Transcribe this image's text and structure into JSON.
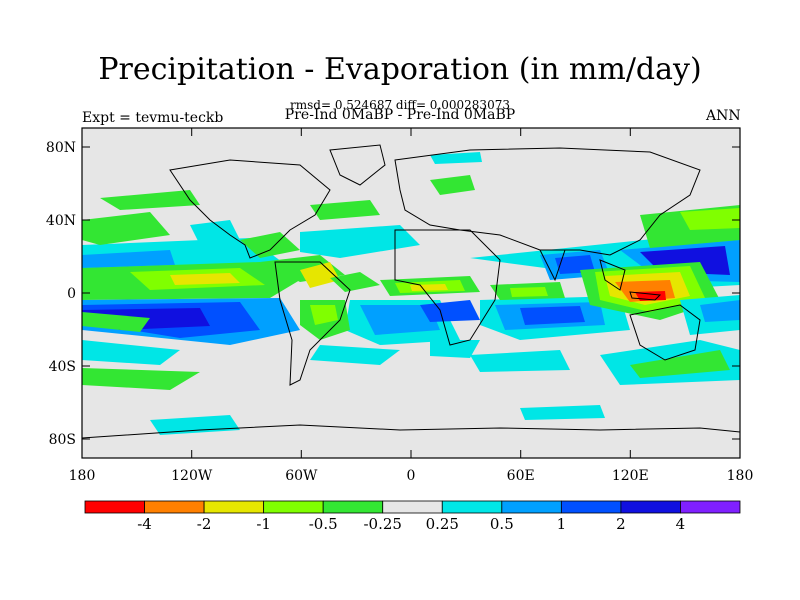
{
  "header": {
    "title": "Precipitation - Evaporation (in mm/day)",
    "stats": "rmsd= 0.524687 diff= 0.000283073",
    "expt": "Expt = tevmu-teckb",
    "subtitle": "Pre-Ind 0MaBP - Pre-Ind 0MaBP",
    "season": "ANN"
  },
  "axes": {
    "y_ticks": [
      "80N",
      "40N",
      "0",
      "40S",
      "80S"
    ],
    "x_ticks": [
      "180",
      "120W",
      "60W",
      "0",
      "60E",
      "120E",
      "180"
    ]
  },
  "colorbar": {
    "labels": [
      "-4",
      "-2",
      "-1",
      "-0.5",
      "-0.25",
      "0.25",
      "0.5",
      "1",
      "2",
      "4"
    ],
    "colors": [
      "#ff0000",
      "#ff8000",
      "#e6e600",
      "#80ff00",
      "#33e633",
      "#e6e6e6",
      "#00e6e6",
      "#00a0ff",
      "#0050ff",
      "#1010e0",
      "#8020ff"
    ]
  },
  "palette": {
    "ocean": "#e6e6e6",
    "coast": "#000000"
  }
}
